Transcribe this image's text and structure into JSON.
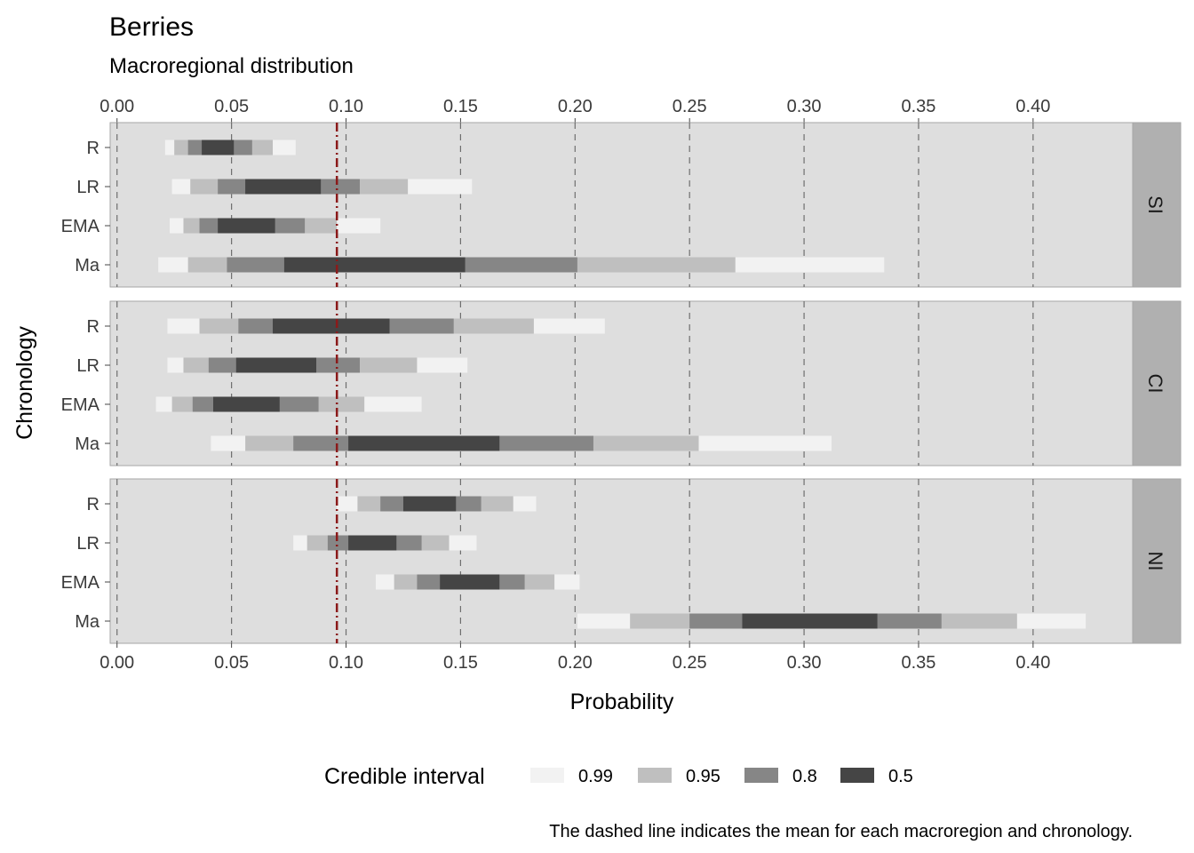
{
  "chart_data": {
    "type": "interval",
    "title": "Berries",
    "subtitle": "Macroregional distribution",
    "xlabel": "Probability",
    "ylabel": "Chronology",
    "caption": "The dashed line indicates the mean for each macroregion and chronology.",
    "xlim": [
      -0.003,
      0.4435
    ],
    "x_ticks": [
      0.0,
      0.05,
      0.1,
      0.15,
      0.2,
      0.25,
      0.3,
      0.35,
      0.4
    ],
    "x_tick_labels": [
      "0.00",
      "0.05",
      "0.10",
      "0.15",
      "0.20",
      "0.25",
      "0.30",
      "0.35",
      "0.40"
    ],
    "grid": "dashed vertical lines at major ticks",
    "mean_line": 0.096,
    "mean_line_color": "#8b1a1a",
    "panel_background": "#dedede",
    "strip_background": "#b0b0b0",
    "legend": {
      "title": "Credible interval",
      "position": "bottom",
      "items": [
        {
          "label": "0.99",
          "color": "#f2f2f2"
        },
        {
          "label": "0.95",
          "color": "#bfbfbf"
        },
        {
          "label": "0.8",
          "color": "#868686"
        },
        {
          "label": "0.5",
          "color": "#454545"
        }
      ]
    },
    "categories": [
      "R",
      "LR",
      "EMA",
      "Ma"
    ],
    "panels": [
      {
        "label": "SI",
        "rows": [
          {
            "category": "R",
            "intervals": {
              "0.99": [
                0.021,
                0.078
              ],
              "0.95": [
                0.025,
                0.068
              ],
              "0.8": [
                0.031,
                0.059
              ],
              "0.5": [
                0.037,
                0.051
              ]
            }
          },
          {
            "category": "LR",
            "intervals": {
              "0.99": [
                0.024,
                0.155
              ],
              "0.95": [
                0.032,
                0.127
              ],
              "0.8": [
                0.044,
                0.106
              ],
              "0.5": [
                0.056,
                0.089
              ]
            }
          },
          {
            "category": "EMA",
            "intervals": {
              "0.99": [
                0.023,
                0.115
              ],
              "0.95": [
                0.029,
                0.096
              ],
              "0.8": [
                0.036,
                0.082
              ],
              "0.5": [
                0.044,
                0.069
              ]
            }
          },
          {
            "category": "Ma",
            "intervals": {
              "0.99": [
                0.018,
                0.335
              ],
              "0.95": [
                0.031,
                0.27
              ],
              "0.8": [
                0.048,
                0.201
              ],
              "0.5": [
                0.073,
                0.152
              ]
            }
          }
        ]
      },
      {
        "label": "CI",
        "rows": [
          {
            "category": "R",
            "intervals": {
              "0.99": [
                0.022,
                0.213
              ],
              "0.95": [
                0.036,
                0.182
              ],
              "0.8": [
                0.053,
                0.147
              ],
              "0.5": [
                0.068,
                0.119
              ]
            }
          },
          {
            "category": "LR",
            "intervals": {
              "0.99": [
                0.022,
                0.153
              ],
              "0.95": [
                0.029,
                0.131
              ],
              "0.8": [
                0.04,
                0.106
              ],
              "0.5": [
                0.052,
                0.087
              ]
            }
          },
          {
            "category": "EMA",
            "intervals": {
              "0.99": [
                0.017,
                0.133
              ],
              "0.95": [
                0.024,
                0.108
              ],
              "0.8": [
                0.033,
                0.088
              ],
              "0.5": [
                0.042,
                0.071
              ]
            }
          },
          {
            "category": "Ma",
            "intervals": {
              "0.99": [
                0.041,
                0.312
              ],
              "0.95": [
                0.056,
                0.254
              ],
              "0.8": [
                0.077,
                0.208
              ],
              "0.5": [
                0.101,
                0.167
              ]
            }
          }
        ]
      },
      {
        "label": "NI",
        "rows": [
          {
            "category": "R",
            "intervals": {
              "0.99": [
                0.096,
                0.183
              ],
              "0.95": [
                0.105,
                0.173
              ],
              "0.8": [
                0.115,
                0.159
              ],
              "0.5": [
                0.125,
                0.148
              ]
            }
          },
          {
            "category": "LR",
            "intervals": {
              "0.99": [
                0.077,
                0.157
              ],
              "0.95": [
                0.083,
                0.145
              ],
              "0.8": [
                0.092,
                0.133
              ],
              "0.5": [
                0.101,
                0.122
              ]
            }
          },
          {
            "category": "EMA",
            "intervals": {
              "0.99": [
                0.113,
                0.202
              ],
              "0.95": [
                0.121,
                0.191
              ],
              "0.8": [
                0.131,
                0.178
              ],
              "0.5": [
                0.141,
                0.167
              ]
            }
          },
          {
            "category": "Ma",
            "intervals": {
              "0.99": [
                0.201,
                0.423
              ],
              "0.95": [
                0.224,
                0.393
              ],
              "0.8": [
                0.25,
                0.36
              ],
              "0.5": [
                0.273,
                0.332
              ]
            }
          }
        ]
      }
    ]
  }
}
